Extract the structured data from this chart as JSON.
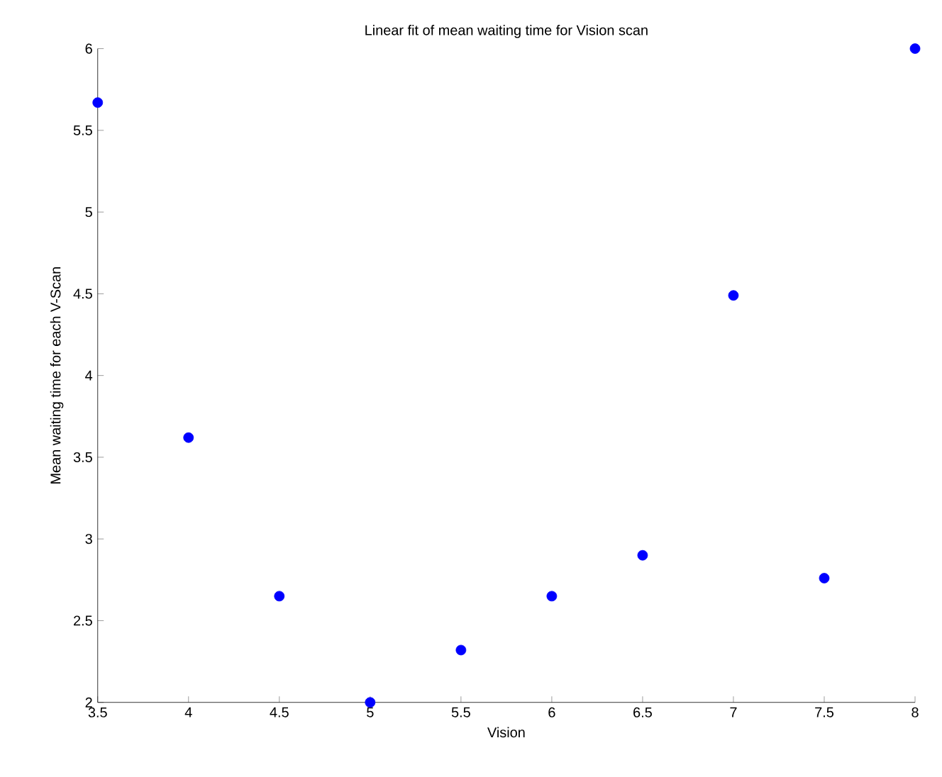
{
  "chart_data": {
    "type": "scatter",
    "title": "Linear fit of mean waiting time for Vision scan",
    "xlabel": "Vision",
    "ylabel": "Mean waiting time for each V-Scan",
    "x": [
      3.5,
      4,
      4.5,
      5,
      5.5,
      6,
      6.5,
      7,
      7.5,
      8
    ],
    "series": [
      {
        "color": "#0000ff",
        "values": [
          5.67,
          3.62,
          2.65,
          2.0,
          2.32,
          2.65,
          2.9,
          4.49,
          2.76,
          6.0
        ]
      }
    ],
    "xlim": [
      3.5,
      8
    ],
    "ylim": [
      2,
      6
    ],
    "xticks": [
      3.5,
      4,
      4.5,
      5,
      5.5,
      6,
      6.5,
      7,
      7.5,
      8
    ],
    "yticks": [
      2,
      2.5,
      3,
      3.5,
      4,
      4.5,
      5,
      5.5,
      6
    ],
    "marker": "circle",
    "grid": false
  }
}
